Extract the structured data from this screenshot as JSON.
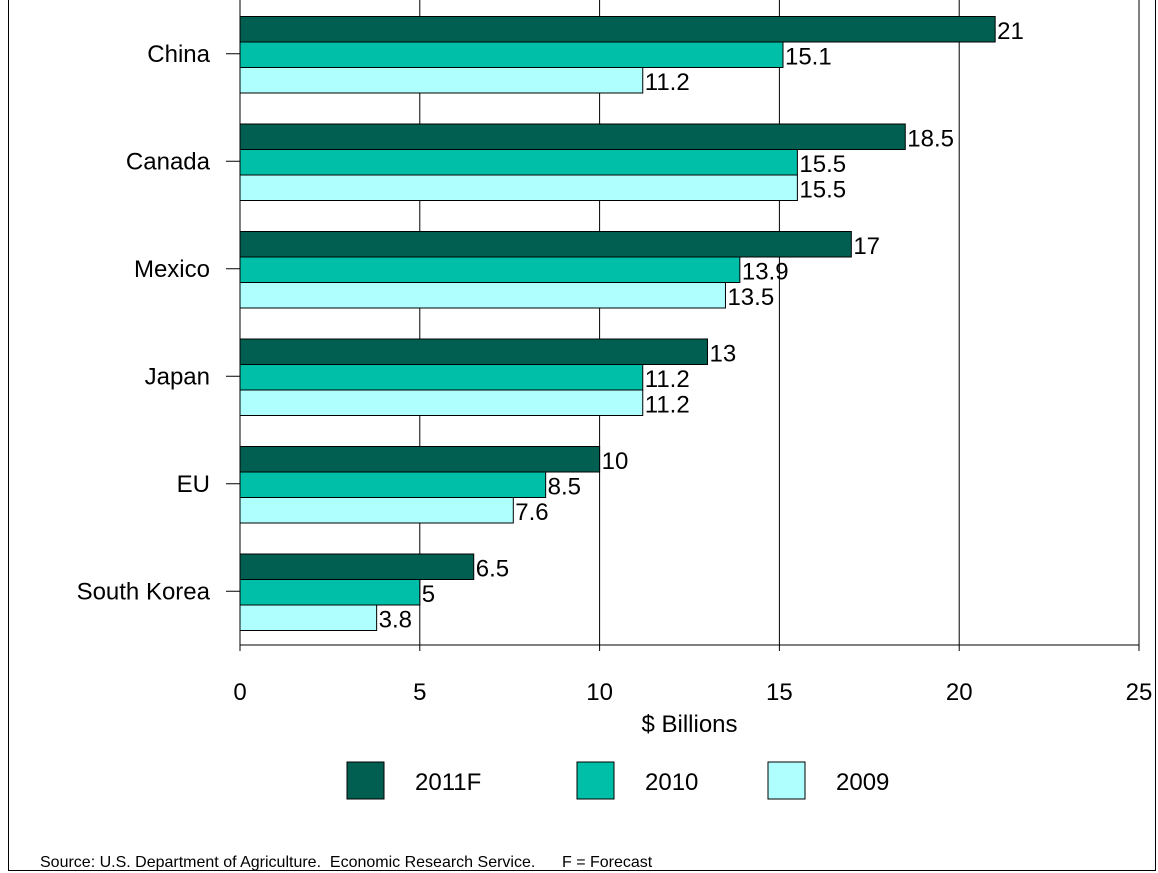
{
  "chart_data": {
    "type": "bar",
    "orientation": "horizontal",
    "categories": [
      "China",
      "Canada",
      "Mexico",
      "Japan",
      "EU",
      "South Korea"
    ],
    "series": [
      {
        "name": "2011F",
        "values": [
          21,
          18.5,
          17,
          13,
          10,
          6.5
        ],
        "color": "#005f50"
      },
      {
        "name": "2010",
        "values": [
          15.1,
          15.5,
          13.9,
          11.2,
          8.5,
          5
        ],
        "color": "#00bfa8"
      },
      {
        "name": "2009",
        "values": [
          11.2,
          15.5,
          13.5,
          11.2,
          7.6,
          3.8
        ],
        "color": "#b0ffff"
      }
    ],
    "data_labels": [
      [
        "21",
        "18.5",
        "17",
        "13",
        "10",
        "6.5"
      ],
      [
        "15.1",
        "15.5",
        "13.9",
        "11.2",
        "8.5",
        "5"
      ],
      [
        "11.2",
        "15.5",
        "13.5",
        "11.2",
        "7.6",
        "3.8"
      ]
    ],
    "xlabel": "$ Billions",
    "xlim": [
      0,
      25
    ],
    "xticks": [
      0,
      5,
      10,
      15,
      20,
      25
    ],
    "grid": "vertical",
    "legend_position": "bottom"
  },
  "footer": {
    "source": "Source: U.S. Department of Agriculture.  Economic Research Service.      F = Forecast"
  }
}
